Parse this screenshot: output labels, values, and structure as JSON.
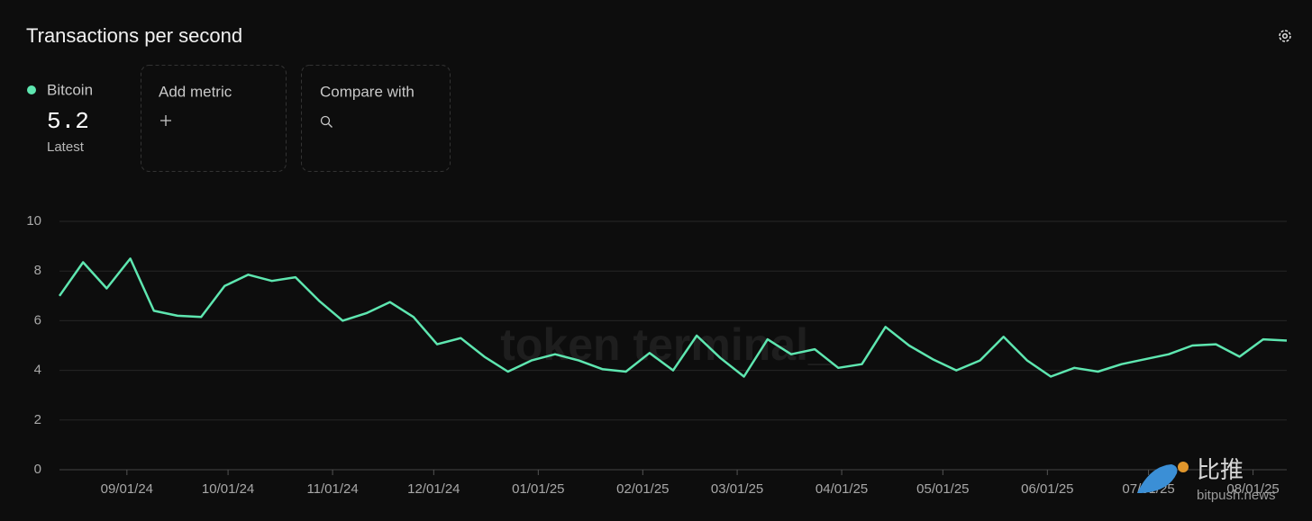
{
  "chart_data": {
    "type": "line",
    "title": "Transactions per second",
    "legend": {
      "name": "Bitcoin",
      "latest_value": "5.2",
      "latest_label": "Latest"
    },
    "buttons": [
      "Add metric",
      "Compare with"
    ],
    "watermark": "token terminal_",
    "source_watermark": {
      "brand": "比推",
      "site": "bitpush.news"
    },
    "x": [
      "2024-08-12",
      "2024-08-19",
      "2024-08-26",
      "2024-09-02",
      "2024-09-09",
      "2024-09-16",
      "2024-09-23",
      "2024-09-30",
      "2024-10-07",
      "2024-10-14",
      "2024-10-21",
      "2024-10-28",
      "2024-11-04",
      "2024-11-11",
      "2024-11-18",
      "2024-11-25",
      "2024-12-02",
      "2024-12-09",
      "2024-12-16",
      "2024-12-23",
      "2024-12-30",
      "2025-01-06",
      "2025-01-13",
      "2025-01-20",
      "2025-01-27",
      "2025-02-03",
      "2025-02-10",
      "2025-02-17",
      "2025-02-24",
      "2025-03-03",
      "2025-03-10",
      "2025-03-17",
      "2025-03-24",
      "2025-03-31",
      "2025-04-07",
      "2025-04-14",
      "2025-04-21",
      "2025-04-28",
      "2025-05-05",
      "2025-05-12",
      "2025-05-19",
      "2025-05-26",
      "2025-06-02",
      "2025-06-09",
      "2025-06-16",
      "2025-06-23",
      "2025-06-30",
      "2025-07-07",
      "2025-07-14",
      "2025-07-21",
      "2025-07-28",
      "2025-08-04",
      "2025-08-11"
    ],
    "series": [
      {
        "name": "Bitcoin",
        "color": "#5ee6b0",
        "values": [
          7.0,
          8.35,
          7.3,
          8.5,
          6.4,
          6.2,
          6.15,
          7.4,
          7.85,
          7.6,
          7.75,
          6.8,
          6.0,
          6.3,
          6.75,
          6.15,
          5.05,
          5.3,
          4.55,
          3.95,
          4.4,
          4.65,
          4.4,
          4.05,
          3.95,
          4.7,
          4.0,
          5.4,
          4.5,
          3.75,
          5.25,
          4.65,
          4.85,
          4.1,
          4.25,
          5.75,
          5.0,
          4.45,
          4.0,
          4.4,
          5.35,
          4.4,
          3.75,
          4.1,
          3.95,
          4.25,
          4.45,
          4.65,
          5.0,
          5.05,
          4.55,
          5.25,
          5.2
        ]
      }
    ],
    "xlim": [
      "2024-08-12",
      "2025-08-11"
    ],
    "xticks": [
      {
        "value": "2024-09-01",
        "label": "09/01/24"
      },
      {
        "value": "2024-10-01",
        "label": "10/01/24"
      },
      {
        "value": "2024-11-01",
        "label": "11/01/24"
      },
      {
        "value": "2024-12-01",
        "label": "12/01/24"
      },
      {
        "value": "2025-01-01",
        "label": "01/01/25"
      },
      {
        "value": "2025-02-01",
        "label": "02/01/25"
      },
      {
        "value": "2025-03-01",
        "label": "03/01/25"
      },
      {
        "value": "2025-04-01",
        "label": "04/01/25"
      },
      {
        "value": "2025-05-01",
        "label": "05/01/25"
      },
      {
        "value": "2025-06-01",
        "label": "06/01/25"
      },
      {
        "value": "2025-07-01",
        "label": "07/01/25"
      },
      {
        "value": "2025-08-01",
        "label": "08/01/25"
      }
    ],
    "ylim": [
      0,
      10
    ],
    "yticks": [
      0,
      2,
      4,
      6,
      8,
      10
    ],
    "grid": true
  }
}
